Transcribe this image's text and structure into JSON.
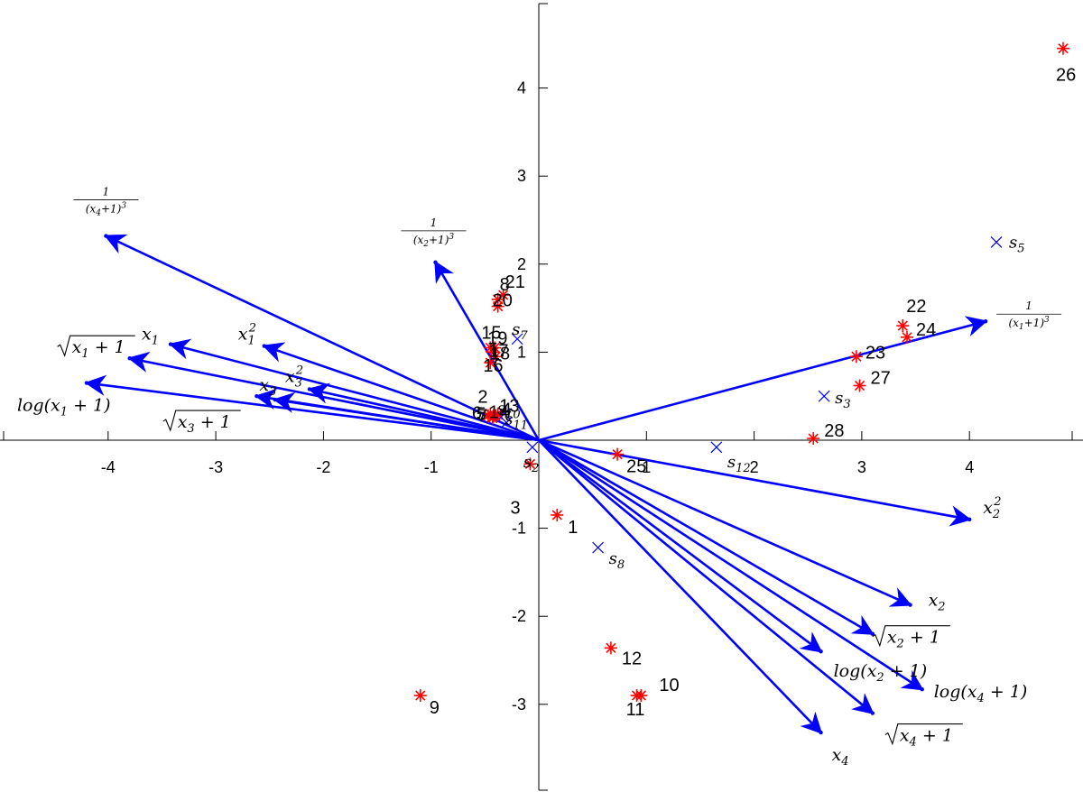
{
  "colors": {
    "vector": "#0000ff",
    "observation": "#ff0000",
    "supplementary": "#0000ff",
    "axis": "#000000"
  },
  "chart_data": {
    "type": "scatter",
    "subtype": "biplot",
    "title": "",
    "xlabel": "",
    "ylabel": "",
    "xlim": [
      -4.95,
      4.95
    ],
    "ylim": [
      -3.9,
      4.95
    ],
    "grid": false,
    "xticks": [
      "-4",
      "-3",
      "-2",
      "-1",
      "1",
      "2",
      "3",
      "4"
    ],
    "xtick_values": [
      -4,
      -3,
      -2,
      -1,
      1,
      2,
      3,
      4
    ],
    "yticks": [
      "-3",
      "-2",
      "-1",
      "1",
      "2",
      "3",
      "4"
    ],
    "ytick_values": [
      -3,
      -2,
      -1,
      1,
      2,
      3,
      4
    ],
    "vectors": [
      {
        "label": "1/(x4+1)^3",
        "x": -4.02,
        "y": 2.32
      },
      {
        "label": "1/(x2+1)^3",
        "x": -0.96,
        "y": 2.02
      },
      {
        "label": "√(x1+1)",
        "x": -3.8,
        "y": 0.93
      },
      {
        "label": "x1",
        "x": -3.42,
        "y": 1.09
      },
      {
        "label": "x1²",
        "x": -2.55,
        "y": 1.07
      },
      {
        "label": "log(x1+1)",
        "x": -4.2,
        "y": 0.65
      },
      {
        "label": "x3",
        "x": -2.62,
        "y": 0.5
      },
      {
        "label": "x3²",
        "x": -2.13,
        "y": 0.58
      },
      {
        "label": "√(x3+1)",
        "x": -2.45,
        "y": 0.46
      },
      {
        "label": "1/(x1+1)^3",
        "x": 4.15,
        "y": 1.35
      },
      {
        "label": "x2²",
        "x": 4.0,
        "y": -0.9
      },
      {
        "label": "x2",
        "x": 3.45,
        "y": -1.87
      },
      {
        "label": "√(x2+1)",
        "x": 3.1,
        "y": -2.2
      },
      {
        "label": "log(x2+1)",
        "x": 2.62,
        "y": -2.4
      },
      {
        "label": "log(x4+1)",
        "x": 3.56,
        "y": -2.83
      },
      {
        "label": "√(x4+1)",
        "x": 3.1,
        "y": -3.1
      },
      {
        "label": "x4",
        "x": 2.62,
        "y": -3.32
      }
    ],
    "observations": [
      {
        "label": "1",
        "x": 0.17,
        "y": -0.85
      },
      {
        "label": "2",
        "x": -0.45,
        "y": 0.3
      },
      {
        "label": "3",
        "x": -0.08,
        "y": -0.27
      },
      {
        "label": "4",
        "x": -0.38,
        "y": 0.3
      },
      {
        "label": "5",
        "x": -0.43,
        "y": 0.25
      },
      {
        "label": "6",
        "x": -0.47,
        "y": 0.28
      },
      {
        "label": "7",
        "x": -0.42,
        "y": 0.27
      },
      {
        "label": "8",
        "x": -0.38,
        "y": 1.6
      },
      {
        "label": "9",
        "x": -1.1,
        "y": -2.9
      },
      {
        "label": "10",
        "x": 0.95,
        "y": -2.9
      },
      {
        "label": "11",
        "x": 0.91,
        "y": -2.9
      },
      {
        "label": "12",
        "x": 0.67,
        "y": -2.36
      },
      {
        "label": "13",
        "x": -0.4,
        "y": 0.28
      },
      {
        "label": "14",
        "x": -0.38,
        "y": 0.29
      },
      {
        "label": "15",
        "x": -0.45,
        "y": 1.05
      },
      {
        "label": "16",
        "x": -0.45,
        "y": 0.88
      },
      {
        "label": "17",
        "x": -0.4,
        "y": 0.95
      },
      {
        "label": "18",
        "x": -0.42,
        "y": 1.0
      },
      {
        "label": "19",
        "x": -0.41,
        "y": 1.05
      },
      {
        "label": "20",
        "x": -0.38,
        "y": 1.52
      },
      {
        "label": "21",
        "x": -0.33,
        "y": 1.65
      },
      {
        "label": "22",
        "x": 3.38,
        "y": 1.3
      },
      {
        "label": "23",
        "x": 2.95,
        "y": 0.95
      },
      {
        "label": "24",
        "x": 3.42,
        "y": 1.17
      },
      {
        "label": "25",
        "x": 0.73,
        "y": -0.16
      },
      {
        "label": "26",
        "x": 4.87,
        "y": 4.45
      },
      {
        "label": "27",
        "x": 2.98,
        "y": 0.62
      },
      {
        "label": "28",
        "x": 2.55,
        "y": 0.02
      }
    ],
    "supplementary": [
      {
        "label": "s5",
        "x": 4.25,
        "y": 2.25
      },
      {
        "label": "s7",
        "x": -0.2,
        "y": 1.15
      },
      {
        "label": "s3",
        "x": 2.65,
        "y": 0.5
      },
      {
        "label": "s12",
        "x": 1.65,
        "y": -0.08
      },
      {
        "label": "s2",
        "x": -0.06,
        "y": -0.08
      },
      {
        "label": "s8",
        "x": 0.55,
        "y": -1.22
      },
      {
        "label": "s10",
        "x": -0.32,
        "y": 0.3
      },
      {
        "label": "s11",
        "x": -0.3,
        "y": 0.2
      }
    ]
  }
}
